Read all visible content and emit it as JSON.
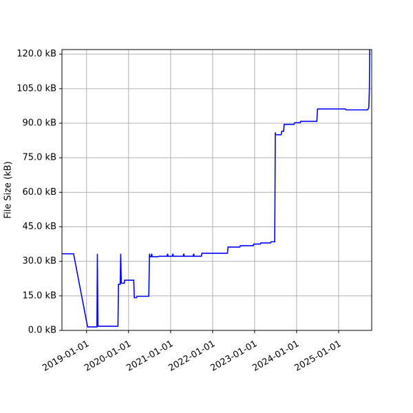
{
  "chart_data": {
    "type": "line",
    "title": "",
    "xlabel": "",
    "ylabel": "File Size (kB)",
    "grid": true,
    "x_type": "date",
    "xlim": [
      "2018-06-01",
      "2025-10-15"
    ],
    "ylim": [
      0,
      122
    ],
    "x_ticks": [
      "2019-01-01",
      "2020-01-01",
      "2021-01-01",
      "2022-01-01",
      "2023-01-01",
      "2024-01-01",
      "2025-01-01"
    ],
    "y_ticks": [
      0,
      15,
      30,
      45,
      60,
      75,
      90,
      105,
      120
    ],
    "y_tick_labels": [
      "0.0 kB",
      "15.0 kB",
      "30.0 kB",
      "45.0 kB",
      "60.0 kB",
      "75.0 kB",
      "90.0 kB",
      "105.0 kB",
      "120.0 kB"
    ],
    "line_color": "#0000ff",
    "series": [
      {
        "points": [
          [
            "2018-06-01",
            33.3
          ],
          [
            "2018-09-10",
            33.3
          ],
          [
            "2019-01-10",
            1.5
          ],
          [
            "2019-04-01",
            1.5
          ],
          [
            "2019-04-05",
            33.3
          ],
          [
            "2019-04-10",
            1.8
          ],
          [
            "2019-10-01",
            1.8
          ],
          [
            "2019-10-05",
            20
          ],
          [
            "2019-10-20",
            20
          ],
          [
            "2019-10-25",
            33.3
          ],
          [
            "2019-10-30",
            20.5
          ],
          [
            "2019-11-25",
            20.5
          ],
          [
            "2019-11-28",
            21.8
          ],
          [
            "2020-02-15",
            21.8
          ],
          [
            "2020-02-20",
            14.2
          ],
          [
            "2020-03-10",
            14.2
          ],
          [
            "2020-03-15",
            14.8
          ],
          [
            "2020-06-25",
            14.8
          ],
          [
            "2020-07-01",
            33.3
          ],
          [
            "2020-07-05",
            32
          ],
          [
            "2020-07-15",
            32
          ],
          [
            "2020-07-20",
            33.3
          ],
          [
            "2020-07-25",
            32
          ],
          [
            "2020-09-15",
            32
          ],
          [
            "2020-09-20",
            32.2
          ],
          [
            "2020-12-01",
            32.2
          ],
          [
            "2020-12-05",
            33.3
          ],
          [
            "2020-12-10",
            32.2
          ],
          [
            "2021-01-15",
            32.2
          ],
          [
            "2021-01-20",
            33.3
          ],
          [
            "2021-01-25",
            32.2
          ],
          [
            "2021-04-20",
            32.2
          ],
          [
            "2021-04-25",
            33.3
          ],
          [
            "2021-04-30",
            32.2
          ],
          [
            "2021-07-15",
            32.2
          ],
          [
            "2021-07-20",
            33.3
          ],
          [
            "2021-07-25",
            32.2
          ],
          [
            "2021-09-25",
            32.2
          ],
          [
            "2021-09-30",
            33.5
          ],
          [
            "2022-05-10",
            33.5
          ],
          [
            "2022-05-15",
            36.2
          ],
          [
            "2022-08-25",
            36.2
          ],
          [
            "2022-08-30",
            36.8
          ],
          [
            "2022-12-20",
            36.8
          ],
          [
            "2022-12-25",
            37.5
          ],
          [
            "2023-02-20",
            37.5
          ],
          [
            "2023-02-25",
            38
          ],
          [
            "2023-05-20",
            38
          ],
          [
            "2023-05-25",
            38.5
          ],
          [
            "2023-06-25",
            38.5
          ],
          [
            "2023-06-30",
            86
          ],
          [
            "2023-07-03",
            85
          ],
          [
            "2023-08-20",
            85
          ],
          [
            "2023-08-25",
            86.5
          ],
          [
            "2023-09-10",
            86.5
          ],
          [
            "2023-09-15",
            89.5
          ],
          [
            "2023-12-10",
            89.5
          ],
          [
            "2023-12-15",
            90.2
          ],
          [
            "2024-02-01",
            90.2
          ],
          [
            "2024-02-05",
            90.8
          ],
          [
            "2024-06-25",
            90.8
          ],
          [
            "2024-07-01",
            96.2
          ],
          [
            "2025-03-01",
            96.2
          ],
          [
            "2025-03-05",
            95.8
          ],
          [
            "2025-09-10",
            95.8
          ],
          [
            "2025-09-20",
            96.8
          ],
          [
            "2025-09-25",
            105
          ],
          [
            "2025-09-28",
            122
          ]
        ]
      }
    ]
  }
}
